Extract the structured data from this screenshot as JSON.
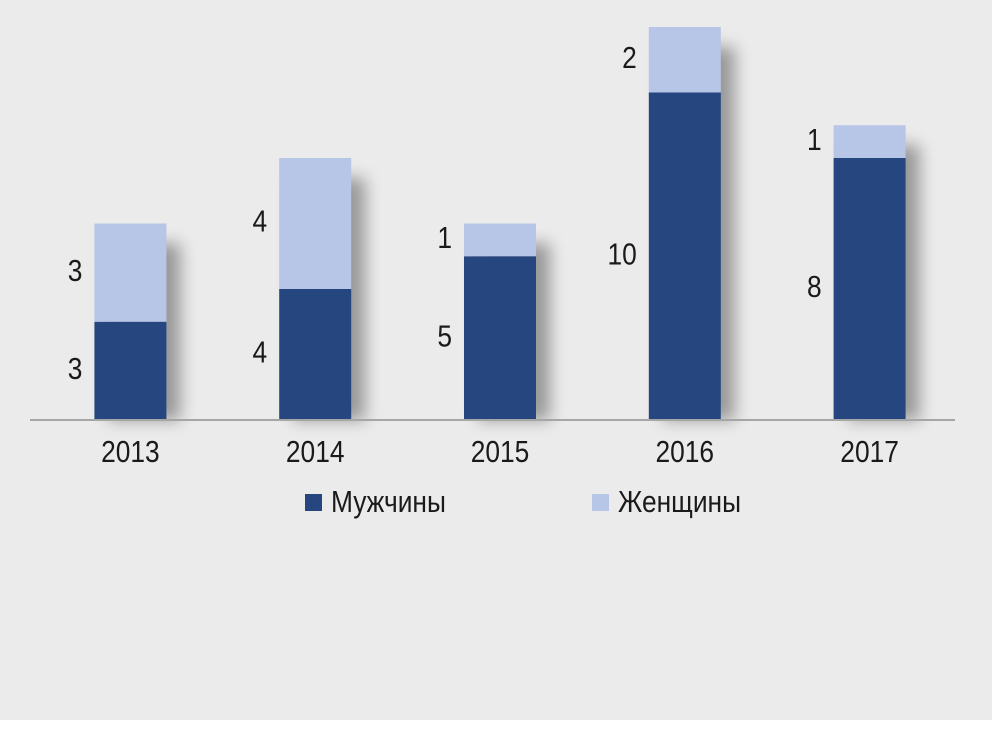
{
  "chart_data": {
    "type": "bar",
    "stacked": true,
    "categories": [
      "2013",
      "2014",
      "2015",
      "2016",
      "2017"
    ],
    "series": [
      {
        "name": "Мужчины",
        "color": "#25467f",
        "values": [
          3,
          4,
          5,
          10,
          8
        ]
      },
      {
        "name": "Женщины",
        "color": "#b7c5e6",
        "values": [
          3,
          4,
          1,
          2,
          1
        ]
      }
    ]
  }
}
